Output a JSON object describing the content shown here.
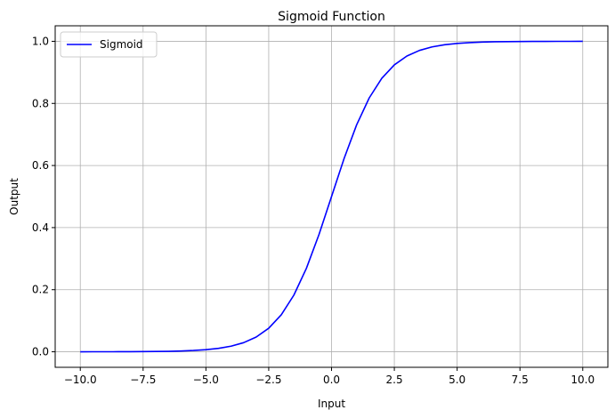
{
  "chart_data": {
    "type": "line",
    "title": "Sigmoid Function",
    "xlabel": "Input",
    "ylabel": "Output",
    "xlim": [
      -11,
      11
    ],
    "ylim": [
      -0.05,
      1.05
    ],
    "xticks": [
      -10.0,
      -7.5,
      -5.0,
      -2.5,
      0.0,
      2.5,
      5.0,
      7.5,
      10.0
    ],
    "xtick_labels": [
      "−10.0",
      "−7.5",
      "−5.0",
      "−2.5",
      "0.0",
      "2.5",
      "5.0",
      "7.5",
      "10.0"
    ],
    "yticks": [
      0.0,
      0.2,
      0.4,
      0.6,
      0.8,
      1.0
    ],
    "ytick_labels": [
      "0.0",
      "0.2",
      "0.4",
      "0.6",
      "0.8",
      "1.0"
    ],
    "grid": true,
    "legend_position": "top-left",
    "series": [
      {
        "name": "Sigmoid",
        "color": "#0000ff",
        "x": [
          -10,
          -9.5,
          -9,
          -8.5,
          -8,
          -7.5,
          -7,
          -6.5,
          -6,
          -5.5,
          -5,
          -4.5,
          -4,
          -3.5,
          -3,
          -2.5,
          -2,
          -1.5,
          -1,
          -0.5,
          0,
          0.5,
          1,
          1.5,
          2,
          2.5,
          3,
          3.5,
          4,
          4.5,
          5,
          5.5,
          6,
          6.5,
          7,
          7.5,
          8,
          8.5,
          9,
          9.5,
          10
        ],
        "y": [
          0.0,
          0.0001,
          0.0001,
          0.0002,
          0.0003,
          0.0006,
          0.0009,
          0.0015,
          0.0025,
          0.0041,
          0.0067,
          0.011,
          0.018,
          0.0293,
          0.0474,
          0.0759,
          0.1192,
          0.1824,
          0.2689,
          0.3775,
          0.5,
          0.6225,
          0.7311,
          0.8176,
          0.8808,
          0.9241,
          0.9526,
          0.9707,
          0.982,
          0.989,
          0.9933,
          0.9959,
          0.9975,
          0.9985,
          0.9991,
          0.9994,
          0.9997,
          0.9998,
          0.9999,
          0.9999,
          1.0
        ]
      }
    ]
  }
}
